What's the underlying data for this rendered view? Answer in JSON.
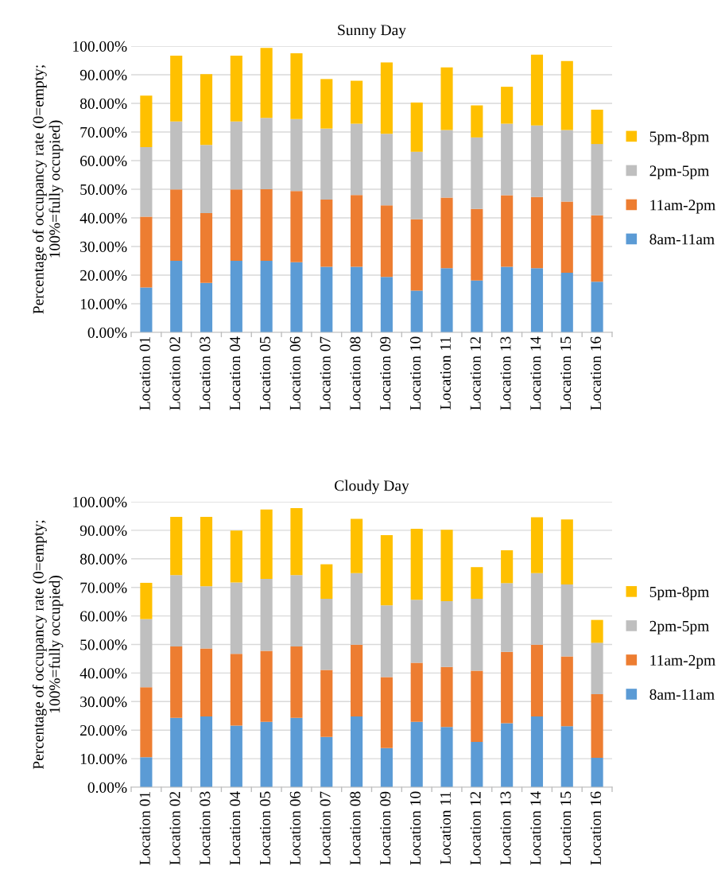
{
  "chart_data": [
    {
      "type": "bar",
      "stacked": true,
      "title": "Sunny Day",
      "ylabel": "Percentage of occupancy rate (0=empty;\n100%=fully occupied)",
      "categories": [
        "Location 01",
        "Location 02",
        "Location 03",
        "Location 04",
        "Location 05",
        "Location 06",
        "Location 07",
        "Location 08",
        "Location 09",
        "Location 10",
        "Location 11",
        "Location 12",
        "Location 13",
        "Location 14",
        "Location 15",
        "Location 16"
      ],
      "series": [
        {
          "name": "8am-11am",
          "color": "#5b9bd5",
          "values": [
            15.7,
            25.0,
            17.3,
            25.0,
            25.0,
            24.5,
            22.9,
            22.9,
            19.4,
            14.6,
            22.4,
            18.1,
            22.9,
            22.4,
            20.8,
            17.7
          ]
        },
        {
          "name": "11am-2pm",
          "color": "#ed7d31",
          "values": [
            24.7,
            24.9,
            24.4,
            24.9,
            25.0,
            24.9,
            23.5,
            25.1,
            25.0,
            24.9,
            24.7,
            25.0,
            25.0,
            24.9,
            24.9,
            23.2
          ]
        },
        {
          "name": "2pm-5pm",
          "color": "#bfbfbf",
          "values": [
            24.3,
            23.8,
            23.8,
            23.8,
            24.9,
            25.1,
            24.8,
            24.9,
            25.0,
            23.6,
            23.6,
            25.0,
            25.0,
            25.0,
            25.0,
            24.9
          ]
        },
        {
          "name": "5pm-8pm",
          "color": "#ffc000",
          "values": [
            18.0,
            23.0,
            24.7,
            23.0,
            24.5,
            23.0,
            17.3,
            15.0,
            24.9,
            17.2,
            21.9,
            11.2,
            12.9,
            24.7,
            24.1,
            12.0
          ]
        }
      ],
      "ylim": [
        0,
        100
      ],
      "yticks": [
        {
          "value": 0,
          "label": "0.00%"
        },
        {
          "value": 10,
          "label": "10.00%"
        },
        {
          "value": 20,
          "label": "20.00%"
        },
        {
          "value": 30,
          "label": "30.00%"
        },
        {
          "value": 40,
          "label": "40.00%"
        },
        {
          "value": 50,
          "label": "50.00%"
        },
        {
          "value": 60,
          "label": "60.00%"
        },
        {
          "value": 70,
          "label": "70.00%"
        },
        {
          "value": 80,
          "label": "80.00%"
        },
        {
          "value": 90,
          "label": "90.00%"
        },
        {
          "value": 100,
          "label": "100.00%"
        }
      ],
      "grid": "y",
      "legend": "right"
    },
    {
      "type": "bar",
      "stacked": true,
      "title": "Cloudy Day",
      "ylabel": "Percentage of occupancy rate (0=empty;\n100%=fully occupied)",
      "categories": [
        "Location 01",
        "Location 02",
        "Location 03",
        "Location 04",
        "Location 05",
        "Location 06",
        "Location 07",
        "Location 08",
        "Location 09",
        "Location 10",
        "Location 11",
        "Location 12",
        "Location 13",
        "Location 14",
        "Location 15",
        "Location 16"
      ],
      "series": [
        {
          "name": "8am-11am",
          "color": "#5b9bd5",
          "values": [
            10.5,
            24.3,
            24.8,
            21.6,
            22.9,
            24.3,
            17.6,
            24.8,
            13.7,
            22.9,
            21.1,
            15.9,
            22.4,
            24.8,
            21.4,
            10.3
          ]
        },
        {
          "name": "11am-2pm",
          "color": "#ed7d31",
          "values": [
            24.5,
            25.0,
            23.8,
            25.1,
            24.9,
            25.0,
            23.5,
            25.1,
            24.9,
            20.7,
            21.0,
            24.9,
            25.0,
            25.1,
            24.4,
            22.3
          ]
        },
        {
          "name": "2pm-5pm",
          "color": "#bfbfbf",
          "values": [
            23.9,
            25.0,
            21.8,
            25.0,
            25.2,
            25.0,
            24.9,
            25.1,
            25.1,
            22.1,
            23.1,
            25.2,
            24.1,
            25.1,
            25.2,
            18.0
          ]
        },
        {
          "name": "5pm-8pm",
          "color": "#ffc000",
          "values": [
            12.7,
            20.4,
            24.3,
            18.2,
            24.3,
            23.5,
            12.1,
            19.0,
            24.6,
            24.8,
            25.0,
            11.1,
            11.5,
            19.6,
            22.8,
            8.0
          ]
        }
      ],
      "ylim": [
        0,
        100
      ],
      "yticks": [
        {
          "value": 0,
          "label": "0.00%"
        },
        {
          "value": 10,
          "label": "10.00%"
        },
        {
          "value": 20,
          "label": "20.00%"
        },
        {
          "value": 30,
          "label": "30.00%"
        },
        {
          "value": 40,
          "label": "40.00%"
        },
        {
          "value": 50,
          "label": "50.00%"
        },
        {
          "value": 60,
          "label": "60.00%"
        },
        {
          "value": 70,
          "label": "70.00%"
        },
        {
          "value": 80,
          "label": "80.00%"
        },
        {
          "value": 90,
          "label": "90.00%"
        },
        {
          "value": 100,
          "label": "100.00%"
        }
      ],
      "grid": "y",
      "legend": "right"
    }
  ]
}
